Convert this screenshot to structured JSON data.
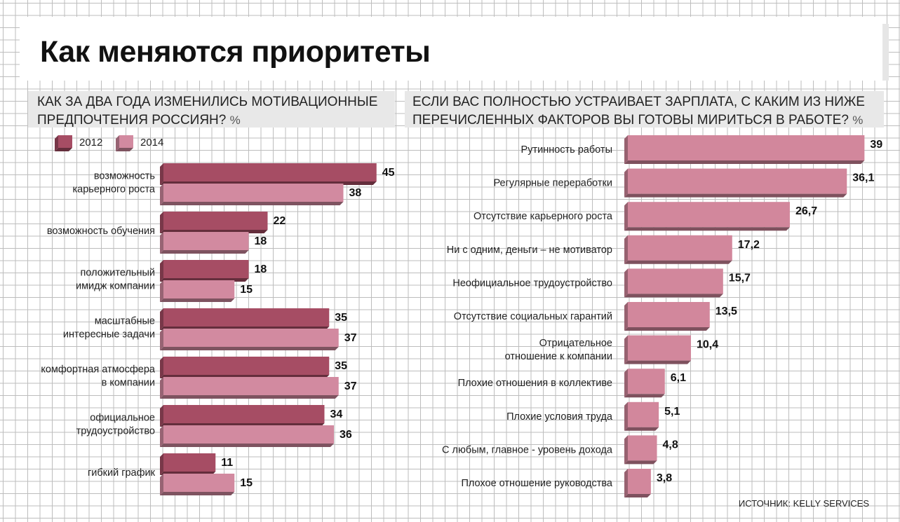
{
  "title": "Как меняются приоритеты",
  "source": "ИСТОЧНИК: KELLY SERVICES",
  "colors": {
    "series_2012": "#a64d64",
    "series_2014": "#d28aa0",
    "right_bar": "#d2879c",
    "subtitle_bg": "#e8e8e8",
    "grid": "#bdbdbd"
  },
  "chart_data": [
    {
      "type": "bar",
      "orientation": "horizontal",
      "title": "КАК ЗА ДВА ГОДА ИЗМЕНИЛИСЬ МОТИВАЦИОННЫЕ ПРЕДПОЧТЕНИЯ РОССИЯН?",
      "title_lines": [
        "КАК ЗА ДВА ГОДА ИЗМЕНИЛИСЬ МОТИВАЦИОННЫЕ",
        "ПРЕДПОЧТЕНИЯ РОССИЯН?"
      ],
      "unit": "%",
      "legend_position": "top-left",
      "categories": [
        "возможность карьерного роста",
        "возможность обучения",
        "положительный имидж компании",
        "масштабные интересные задачи",
        "комфортная атмосфера в компании",
        "официальное трудоустройство",
        "гибкий график"
      ],
      "category_lines": [
        [
          "возможность",
          "карьерного роста"
        ],
        [
          "возможность обучения"
        ],
        [
          "положительный",
          "имидж компании"
        ],
        [
          "масштабные",
          "интересные задачи"
        ],
        [
          "комфортная атмосфера",
          "в компании"
        ],
        [
          "официальное",
          "трудоустройство"
        ],
        [
          "гибкий график"
        ]
      ],
      "series": [
        {
          "name": "2012",
          "values": [
            45,
            22,
            18,
            35,
            35,
            34,
            11
          ],
          "labels": [
            "45",
            "22",
            "18",
            "35",
            "35",
            "34",
            "11"
          ]
        },
        {
          "name": "2014",
          "values": [
            38,
            18,
            15,
            37,
            37,
            36,
            15
          ],
          "labels": [
            "38",
            "18",
            "15",
            "37",
            "37",
            "36",
            "15"
          ]
        }
      ]
    },
    {
      "type": "bar",
      "orientation": "horizontal",
      "title": "ЕСЛИ ВАС ПОЛНОСТЬЮ УСТРАИВАЕТ ЗАРПЛАТА, С КАКИМ ИЗ НИЖЕ ПЕРЕЧИСЛЕННЫХ ФАКТОРОВ ВЫ ГОТОВЫ МИРИТЬСЯ В РАБОТЕ?",
      "title_lines": [
        "ЕСЛИ ВАС ПОЛНОСТЬЮ УСТРАИВАЕТ ЗАРПЛАТА, С КАКИМ ИЗ НИЖЕ",
        "ПЕРЕЧИСЛЕННЫХ ФАКТОРОВ ВЫ ГОТОВЫ МИРИТЬСЯ В РАБОТЕ?"
      ],
      "unit": "%",
      "categories": [
        "Рутинность работы",
        "Регулярные переработки",
        "Отсутствие карьерного роста",
        "Ни с одним, деньги – не мотиватор",
        "Неофициальное трудоустройство",
        "Отсутствие социальных гарантий",
        "Отрицательное отношение к компании",
        "Плохие отношения в коллективе",
        "Плохие условия труда",
        "С любым, главное - уровень дохода",
        "Плохое отношение руководства"
      ],
      "category_lines": [
        [
          "Рутинность работы"
        ],
        [
          "Регулярные переработки"
        ],
        [
          "Отсутствие карьерного роста"
        ],
        [
          "Ни с одним, деньги – не мотиватор"
        ],
        [
          "Неофициальное трудоустройство"
        ],
        [
          "Отсутствие социальных гарантий"
        ],
        [
          "Отрицательное",
          "отношение к компании"
        ],
        [
          "Плохие отношения в коллективе"
        ],
        [
          "Плохие условия труда"
        ],
        [
          "С любым, главное - уровень дохода"
        ],
        [
          "Плохое отношение руководства"
        ]
      ],
      "values": [
        39,
        36.1,
        26.7,
        17.2,
        15.7,
        13.5,
        10.4,
        6.1,
        5.1,
        4.8,
        3.8
      ],
      "labels": [
        "39",
        "36,1",
        "26,7",
        "17,2",
        "15,7",
        "13,5",
        "10,4",
        "6,1",
        "5,1",
        "4,8",
        "3,8"
      ]
    }
  ]
}
